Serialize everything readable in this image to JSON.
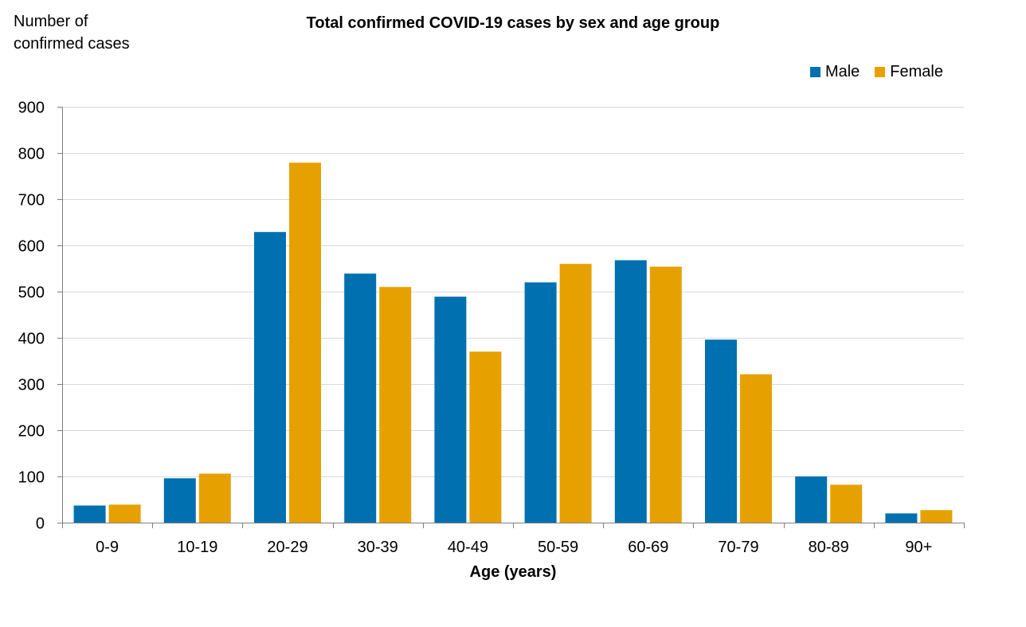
{
  "chart_data": {
    "type": "bar",
    "title": "Total confirmed COVID-19 cases by sex and age group",
    "ylabel_lines": [
      "Number of",
      "confirmed cases"
    ],
    "xlabel": "Age (years)",
    "categories": [
      "0-9",
      "10-19",
      "20-29",
      "30-39",
      "40-49",
      "50-59",
      "60-69",
      "70-79",
      "80-89",
      "90+"
    ],
    "ylim": [
      0,
      900
    ],
    "yticks": [
      "0",
      "100",
      "200",
      "300",
      "400",
      "500",
      "600",
      "700",
      "800",
      "900"
    ],
    "grid": true,
    "legend_position": "top-right",
    "series": [
      {
        "name": "Male",
        "color": "#0070b0",
        "values": [
          37,
          96,
          629,
          539,
          489,
          520,
          568,
          396,
          100,
          20
        ]
      },
      {
        "name": "Female",
        "color": "#e6a100",
        "values": [
          39,
          106,
          779,
          510,
          370,
          560,
          554,
          321,
          82,
          27
        ]
      }
    ]
  }
}
